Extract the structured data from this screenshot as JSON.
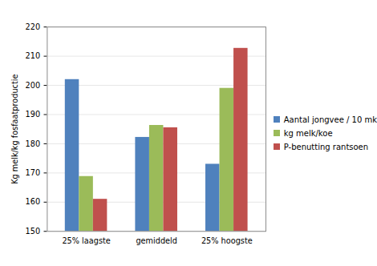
{
  "chart_data": {
    "type": "bar",
    "y_label": "Kg melk/kg fosfaatproductie",
    "categories": [
      "25% laagste",
      "gemiddeld",
      "25% hoogste"
    ],
    "series": [
      {
        "name": "Aantal jongvee / 10 mk",
        "color": "#4f81bd",
        "values": [
          202,
          182.2,
          173
        ]
      },
      {
        "name": "kg melk/koe",
        "color": "#9bbb59",
        "values": [
          168.8,
          186.3,
          199
        ]
      },
      {
        "name": "P-benutting rantsoen",
        "color": "#c0504d",
        "values": [
          161,
          185.5,
          212.7
        ]
      }
    ],
    "ylim": [
      150,
      220
    ],
    "yticks": [
      150,
      160,
      170,
      180,
      190,
      200,
      210,
      220
    ],
    "grid": true,
    "legend": "right"
  }
}
